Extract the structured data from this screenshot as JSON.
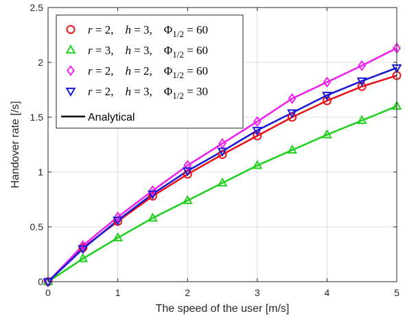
{
  "chart_data": {
    "type": "line",
    "xlabel": "The speed of the user [m/s]",
    "ylabel": "Handover rate [/s]",
    "xlim": [
      0,
      5
    ],
    "ylim": [
      0,
      2.5
    ],
    "xticks": [
      "0",
      "1",
      "2",
      "3",
      "4",
      "5"
    ],
    "yticks": [
      "0",
      "0.5",
      "1",
      "1.5",
      "2",
      "2.5"
    ],
    "grid": true,
    "legend_placement": "top-left",
    "x": [
      0,
      0.5,
      1,
      1.5,
      2,
      2.5,
      3,
      3.5,
      4,
      4.5,
      5
    ],
    "series": [
      {
        "name": "r = 2,   h = 3,   Φ1/2 = 60",
        "legend": {
          "r": "2",
          "h": "3",
          "phi": "60"
        },
        "color": "#e8141c",
        "marker": "circle",
        "values": [
          0,
          0.31,
          0.55,
          0.78,
          0.98,
          1.16,
          1.33,
          1.5,
          1.65,
          1.78,
          1.88
        ]
      },
      {
        "name": "r = 3,   h = 3,   Φ1/2 = 60",
        "legend": {
          "r": "3",
          "h": "3",
          "phi": "60"
        },
        "color": "#22d022",
        "marker": "triangle-up",
        "values": [
          0,
          0.21,
          0.4,
          0.58,
          0.74,
          0.9,
          1.06,
          1.2,
          1.34,
          1.47,
          1.6
        ]
      },
      {
        "name": "r = 2,   h = 2,   Φ1/2 = 60",
        "legend": {
          "r": "2",
          "h": "2",
          "phi": "60"
        },
        "color": "#ee22ee",
        "marker": "diamond",
        "values": [
          0,
          0.33,
          0.59,
          0.83,
          1.06,
          1.26,
          1.46,
          1.67,
          1.82,
          1.97,
          2.13
        ]
      },
      {
        "name": "r = 2,   h = 3,   Φ1/2 = 30",
        "legend": {
          "r": "2",
          "h": "3",
          "phi": "30"
        },
        "color": "#1a1ad6",
        "marker": "triangle-down",
        "values": [
          0,
          0.3,
          0.56,
          0.8,
          1.01,
          1.19,
          1.38,
          1.54,
          1.7,
          1.83,
          1.95
        ]
      }
    ],
    "analytical_label": "Analytical"
  }
}
